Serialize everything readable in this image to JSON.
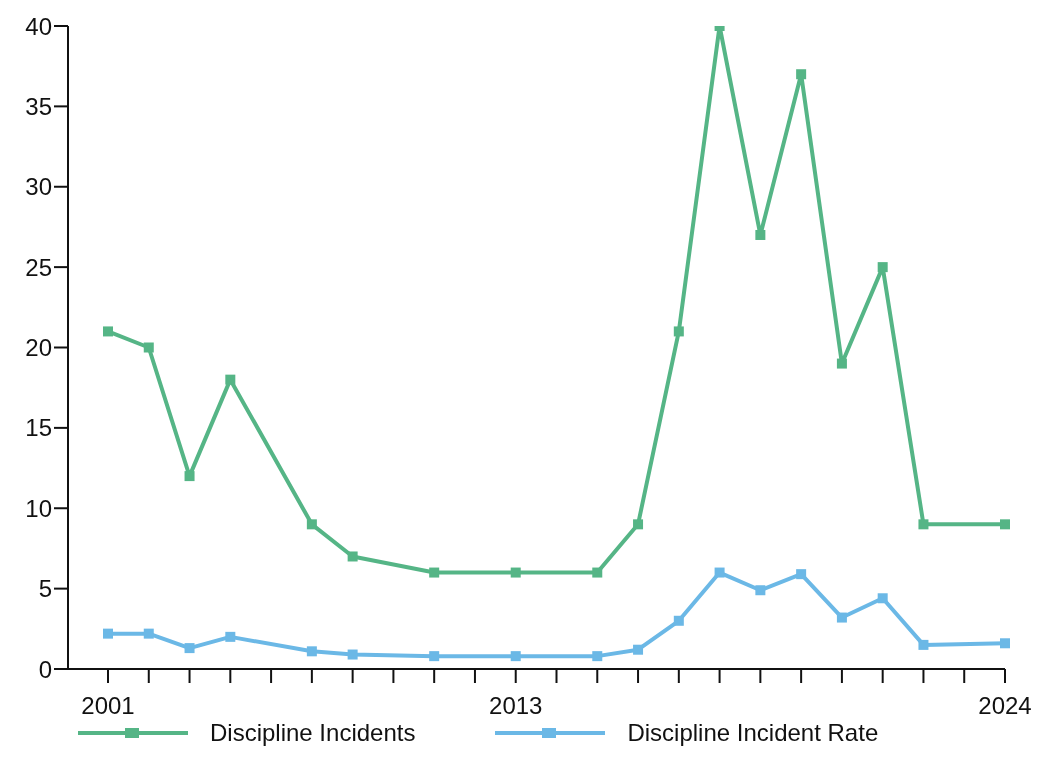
{
  "chart_data": {
    "type": "line",
    "categories": [
      "2001",
      null,
      null,
      null,
      null,
      null,
      null,
      null,
      null,
      null,
      "2013",
      null,
      null,
      null,
      null,
      null,
      null,
      null,
      null,
      null,
      null,
      null,
      "2024"
    ],
    "series": [
      {
        "name": "Discipline Incidents",
        "color": "#55b586",
        "values": [
          21,
          20,
          12,
          18,
          null,
          9,
          7,
          null,
          6,
          null,
          6,
          null,
          6,
          9,
          21,
          40,
          27,
          37,
          19,
          25,
          9,
          null,
          9
        ]
      },
      {
        "name": "Discipline Incident Rate",
        "color": "#6bb8e6",
        "values": [
          2.2,
          2.2,
          1.3,
          2.0,
          null,
          1.1,
          0.9,
          null,
          0.8,
          null,
          0.8,
          null,
          0.8,
          1.2,
          3.0,
          6.0,
          4.9,
          5.9,
          3.2,
          4.4,
          1.5,
          null,
          1.6
        ]
      }
    ],
    "ylim": [
      0,
      40
    ],
    "yticks": [
      0,
      5,
      10,
      15,
      20,
      25,
      30,
      35,
      40
    ],
    "grid": false,
    "legend": "bottom",
    "marker": "square",
    "line_style": "solid"
  }
}
